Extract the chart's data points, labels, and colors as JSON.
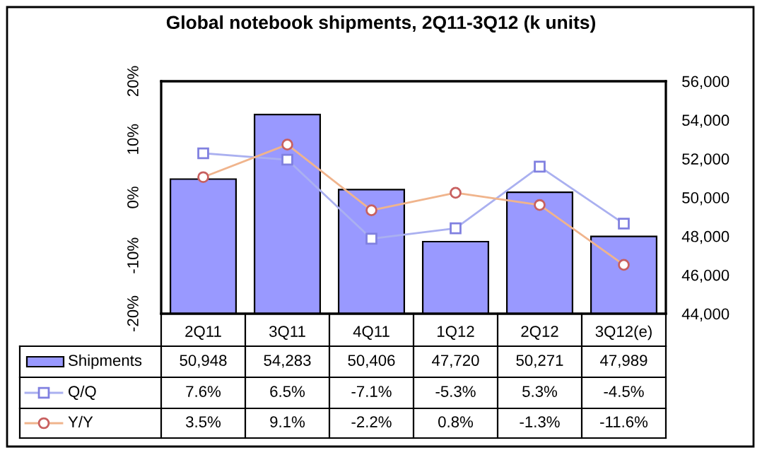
{
  "chart_data": {
    "type": "bar",
    "title": "Global notebook shipments, 2Q11-3Q12 (k units)",
    "categories": [
      "2Q11",
      "3Q11",
      "4Q11",
      "1Q12",
      "2Q12",
      "3Q12(e)"
    ],
    "series": [
      {
        "name": "Shipments",
        "axis": "y2",
        "color": "#9999ff",
        "values": [
          50948,
          54283,
          50406,
          47720,
          50271,
          47989
        ],
        "value_labels": [
          "50,948",
          "54,283",
          "50,406",
          "47,720",
          "50,271",
          "47,989"
        ]
      },
      {
        "name": "Q/Q",
        "type": "line",
        "axis": "y",
        "color": "#aab0f0",
        "marker": "square",
        "values": [
          7.6,
          6.5,
          -7.1,
          -5.3,
          5.3,
          -4.5
        ],
        "value_labels": [
          "7.6%",
          "6.5%",
          "-7.1%",
          "-5.3%",
          "5.3%",
          "-4.5%"
        ]
      },
      {
        "name": "Y/Y",
        "type": "line",
        "axis": "y",
        "color": "#f0b48c",
        "marker": "circle",
        "values": [
          3.5,
          9.1,
          -2.2,
          0.8,
          -1.3,
          -11.6
        ],
        "value_labels": [
          "3.5%",
          "9.1%",
          "-2.2%",
          "0.8%",
          "-1.3%",
          "-11.6%"
        ]
      }
    ],
    "ylim": [
      -20,
      20
    ],
    "yticks": [
      {
        "value": -20,
        "label": "-20%"
      },
      {
        "value": -10,
        "label": "-10%"
      },
      {
        "value": 0,
        "label": "0%"
      },
      {
        "value": 10,
        "label": "10%"
      },
      {
        "value": 20,
        "label": "20%"
      }
    ],
    "y2lim": [
      44000,
      56000
    ],
    "y2ticks": [
      {
        "value": 44000,
        "label": "44,000"
      },
      {
        "value": 46000,
        "label": "46,000"
      },
      {
        "value": 48000,
        "label": "48,000"
      },
      {
        "value": 50000,
        "label": "50,000"
      },
      {
        "value": 52000,
        "label": "52,000"
      },
      {
        "value": 54000,
        "label": "54,000"
      },
      {
        "value": 56000,
        "label": "56,000"
      }
    ],
    "grid": false,
    "legend": "bottom left"
  }
}
